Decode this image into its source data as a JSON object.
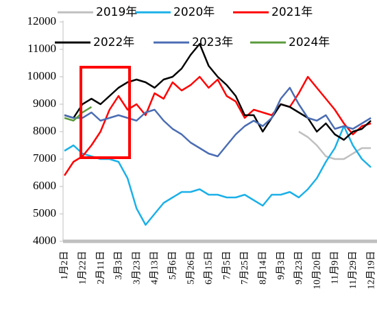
{
  "chart_data": {
    "type": "line",
    "categories": [
      "1月2日",
      null,
      "1月22日",
      null,
      "2月11日",
      null,
      "3月3日",
      null,
      "3月23日",
      null,
      "4月13日",
      null,
      "5月6日",
      null,
      "5月26日",
      null,
      "6月15日",
      null,
      "7月5日",
      null,
      "7月25日",
      null,
      "8月14日",
      null,
      "9月3日",
      null,
      "9月23日",
      null,
      "10月20日",
      null,
      "11月9日",
      null,
      "11月29日",
      null,
      "12月19日"
    ],
    "series": [
      {
        "name": "2019年",
        "color": "#bfbfbf",
        "values": [
          null,
          null,
          null,
          null,
          null,
          null,
          null,
          null,
          null,
          null,
          null,
          null,
          null,
          null,
          null,
          null,
          null,
          null,
          null,
          null,
          null,
          null,
          null,
          null,
          null,
          null,
          8000,
          7800,
          7500,
          7100,
          7000,
          7000,
          7200,
          7400,
          7400
        ]
      },
      {
        "name": "2020年",
        "color": "#1ab0e8",
        "values": [
          7300,
          7500,
          7200,
          7100,
          7000,
          7000,
          6900,
          6300,
          5200,
          4600,
          5000,
          5400,
          5600,
          5800,
          5800,
          5900,
          5700,
          5700,
          5600,
          5600,
          5700,
          5500,
          5300,
          5700,
          5700,
          5800,
          5600,
          5900,
          6300,
          6900,
          7400,
          8200,
          7500,
          7000,
          6700
        ]
      },
      {
        "name": "2021年",
        "color": "#ff0000",
        "values": [
          6400,
          6900,
          7100,
          7500,
          8000,
          8800,
          9300,
          8800,
          9000,
          8600,
          9400,
          9200,
          9800,
          9500,
          9700,
          10000,
          9600,
          9900,
          9300,
          9100,
          8500,
          8800,
          8700,
          8600,
          9000,
          8900,
          9400,
          10000,
          9600,
          9200,
          8800,
          8300,
          7900,
          8200,
          8300
        ]
      },
      {
        "name": "2022年",
        "color": "#000000",
        "values": [
          8600,
          8500,
          9000,
          9200,
          9000,
          9300,
          9600,
          9800,
          9900,
          9800,
          9600,
          9900,
          10000,
          10300,
          10800,
          11200,
          10400,
          10000,
          9700,
          9300,
          8600,
          8600,
          8000,
          8500,
          9000,
          8900,
          8700,
          8500,
          8000,
          8300,
          7900,
          7700,
          8000,
          8100,
          8400
        ]
      },
      {
        "name": "2023年",
        "color": "#4a6cb3",
        "values": [
          8600,
          8500,
          8500,
          8700,
          8400,
          8500,
          8600,
          8500,
          8400,
          8700,
          8800,
          8400,
          8100,
          7900,
          7600,
          7400,
          7200,
          7100,
          7500,
          7900,
          8200,
          8400,
          8200,
          8500,
          9200,
          9600,
          9000,
          8500,
          8400,
          8600,
          8100,
          8200,
          8100,
          8300,
          8500
        ]
      },
      {
        "name": "2024年",
        "color": "#5b9a3c",
        "values": [
          8500,
          8400,
          8700,
          8900,
          null,
          null,
          null,
          null,
          null,
          null,
          null,
          null,
          null,
          null,
          null,
          null,
          null,
          null,
          null,
          null,
          null,
          null,
          null,
          null,
          null,
          null,
          null,
          null,
          null,
          null,
          null,
          null,
          null,
          null,
          null
        ]
      }
    ],
    "ylim": [
      4000,
      12000
    ],
    "yticks": [
      4000,
      5000,
      6000,
      7000,
      8000,
      9000,
      10000,
      11000,
      12000
    ]
  }
}
